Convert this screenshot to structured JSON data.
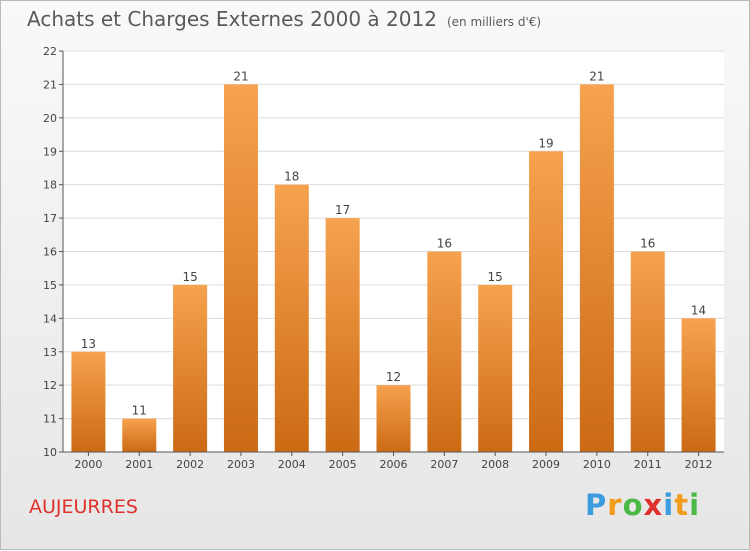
{
  "header": {
    "title": "Achats et Charges Externes 2000 à 2012",
    "unit": "(en milliers d'€)"
  },
  "footer": {
    "commune": "AUJEURRES"
  },
  "brand": {
    "name": "Proxiti",
    "letters": [
      {
        "ch": "P",
        "color": "#3d9be0"
      },
      {
        "ch": "r",
        "color": "#f39c1b"
      },
      {
        "ch": "o",
        "color": "#4cb848"
      },
      {
        "ch": "x",
        "color": "#e0302c"
      },
      {
        "ch": "i",
        "color": "#3d9be0"
      },
      {
        "ch": "t",
        "color": "#f39c1b"
      },
      {
        "ch": "i",
        "color": "#4cb848"
      }
    ]
  },
  "colors": {
    "bar_light": "#f6a24e",
    "bar_dark": "#cc6a14",
    "label": "#444444",
    "axis": "#555555"
  },
  "chart_data": {
    "type": "bar",
    "categories": [
      "2000",
      "2001",
      "2002",
      "2003",
      "2004",
      "2005",
      "2006",
      "2007",
      "2008",
      "2009",
      "2010",
      "2011",
      "2012"
    ],
    "values": [
      13,
      11,
      15,
      21,
      18,
      17,
      12,
      16,
      15,
      19,
      21,
      16,
      14
    ],
    "ylim": [
      10,
      22
    ],
    "yticks": [
      10,
      11,
      12,
      13,
      14,
      15,
      16,
      17,
      18,
      19,
      20,
      21,
      22
    ],
    "data_labels": true,
    "grid": true
  }
}
